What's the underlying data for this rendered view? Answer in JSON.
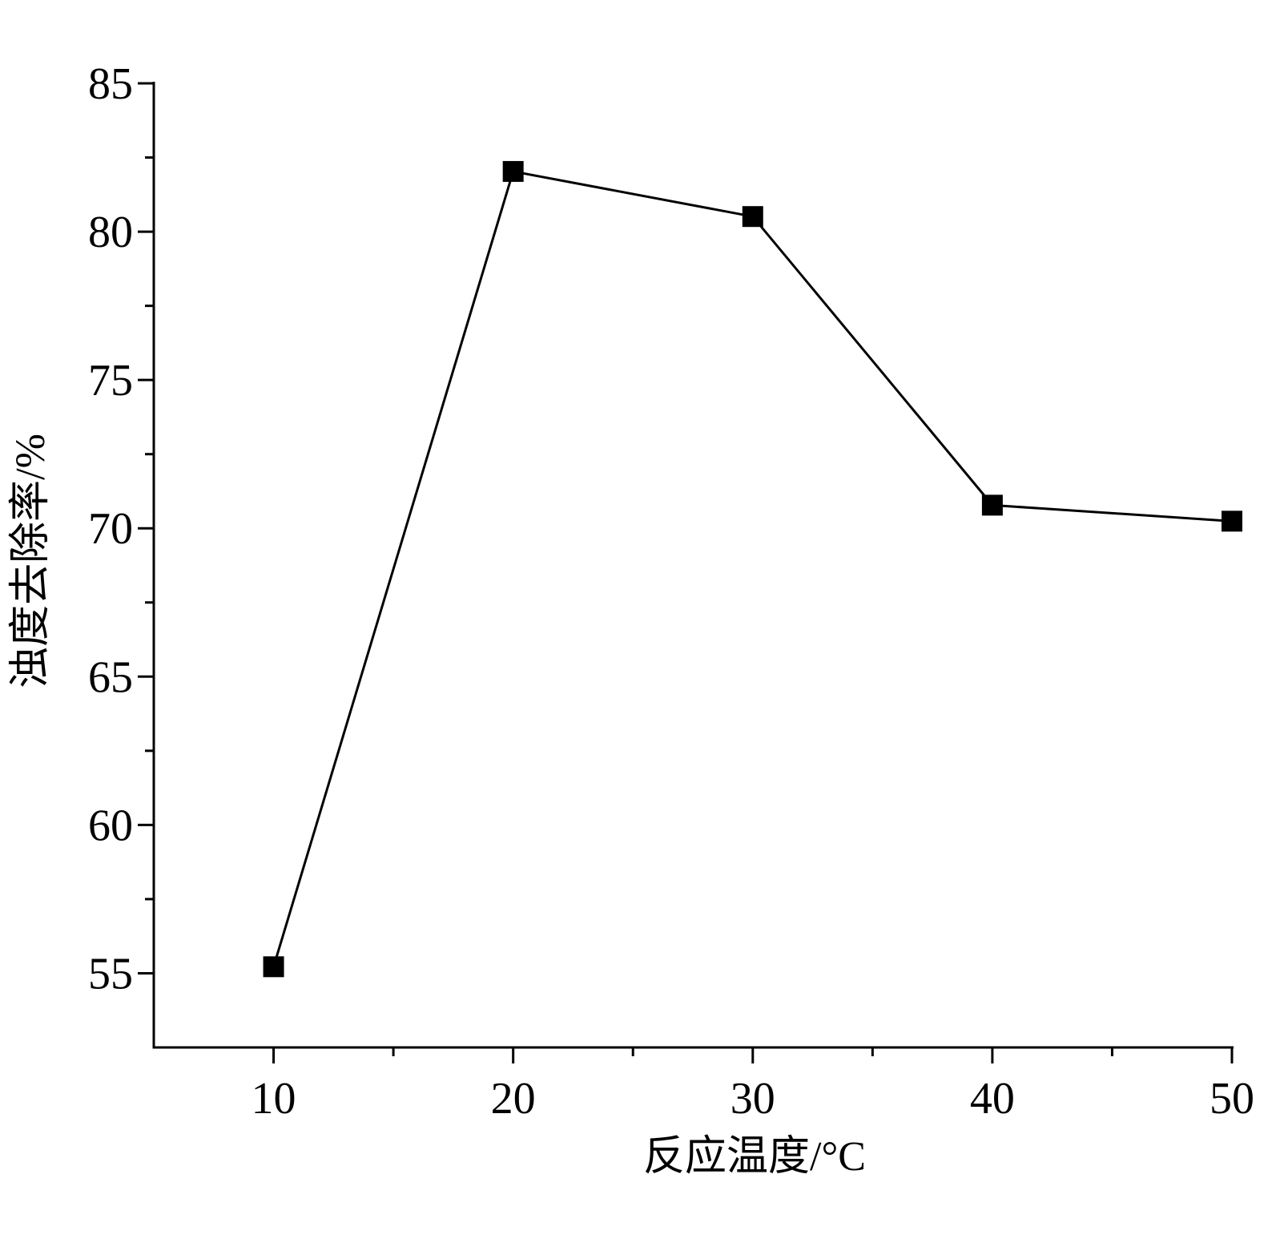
{
  "chart_data": {
    "type": "line",
    "xlabel": "反应温度/°C",
    "ylabel": "浊度去除率/%",
    "x": [
      10,
      20,
      30,
      40,
      50
    ],
    "series": [
      {
        "name": null,
        "color": "#000000",
        "values": [
          55.22,
          82.03,
          80.51,
          70.78,
          70.24
        ]
      }
    ],
    "xlim": [
      5,
      50
    ],
    "xticks": [
      10,
      20,
      30,
      40,
      50
    ],
    "xminorticks": [
      15,
      25,
      35,
      45
    ],
    "ylim": [
      52.5,
      85
    ],
    "yticks": [
      55,
      60,
      65,
      70,
      75,
      80,
      85
    ],
    "yminorticks": [
      57.5,
      62.5,
      67.5,
      72.5,
      77.5,
      82.5
    ],
    "grid": false,
    "marker": "square"
  }
}
